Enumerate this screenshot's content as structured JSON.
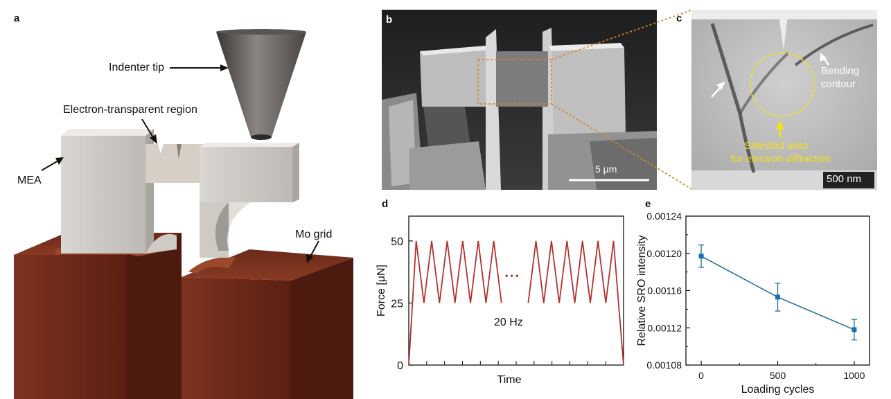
{
  "panels": {
    "a": {
      "label": "a",
      "annotations": {
        "indenter_tip": "Indenter tip",
        "electron_region": "Electron-transparent region",
        "mea": "MEA",
        "mo_grid": "Mo grid"
      }
    },
    "b": {
      "label": "b",
      "scalebar": "5 μm"
    },
    "c": {
      "label": "c",
      "scalebar": "500 nm",
      "bending_line1": "Bending",
      "bending_line2": "contour",
      "selected_line1": "Selected area",
      "selected_line2": "for electron diffraction"
    },
    "d": {
      "label": "d",
      "frequency": "20 Hz",
      "ellipsis": "• • •"
    },
    "e": {
      "label": "e"
    }
  },
  "colors": {
    "force_line": "#b3312e",
    "sro_line": "#1f6fa8",
    "grid_brown": "#7a3020",
    "selection_yellow": "#f2e21a",
    "zoom_orange": "#d68a2a"
  },
  "chart_data": [
    {
      "id": "d",
      "type": "line",
      "xlabel": "Time",
      "ylabel": "Force [μN]",
      "ylim": [
        0,
        60
      ],
      "yticks": [
        "0",
        "25",
        "50"
      ],
      "xticks_labeled": false,
      "cycles_before_gap": 6,
      "cycles_after_gap": 6,
      "max": 50,
      "min": 25,
      "frequency_label": "20 Hz",
      "series": [
        {
          "x": [
            0,
            0.5,
            0.7,
            0.9,
            1.1,
            1.3,
            1.5,
            1.7,
            1.9,
            2.1,
            2.3,
            2.5,
            2.7,
            2.9,
            3.1,
            3.3,
            3.5,
            3.7,
            3.9,
            4.1,
            4.3,
            4.5,
            4.7,
            4.9,
            5.0
          ],
          "y": [
            0,
            50,
            25,
            50,
            25,
            50,
            25,
            50,
            25,
            50,
            25,
            50,
            25,
            50,
            25,
            50,
            25,
            50,
            25,
            50,
            25,
            50,
            25,
            50,
            0
          ]
        }
      ]
    },
    {
      "id": "e",
      "type": "line",
      "xlabel": "Loading cycles",
      "ylabel": "Relative SRO intensity",
      "xlim": [
        -100,
        1100
      ],
      "ylim": [
        0.00108,
        0.00124
      ],
      "xticks": [
        "0",
        "500",
        "1000"
      ],
      "yticks": [
        "0.00108",
        "0.00112",
        "0.00116",
        "0.00120",
        "0.00124"
      ],
      "series": [
        {
          "x": [
            0,
            500,
            1000
          ],
          "y": [
            0.001197,
            0.001153,
            0.001118
          ],
          "err": [
            1.2e-05,
            1.5e-05,
            1.1e-05
          ]
        }
      ]
    }
  ]
}
